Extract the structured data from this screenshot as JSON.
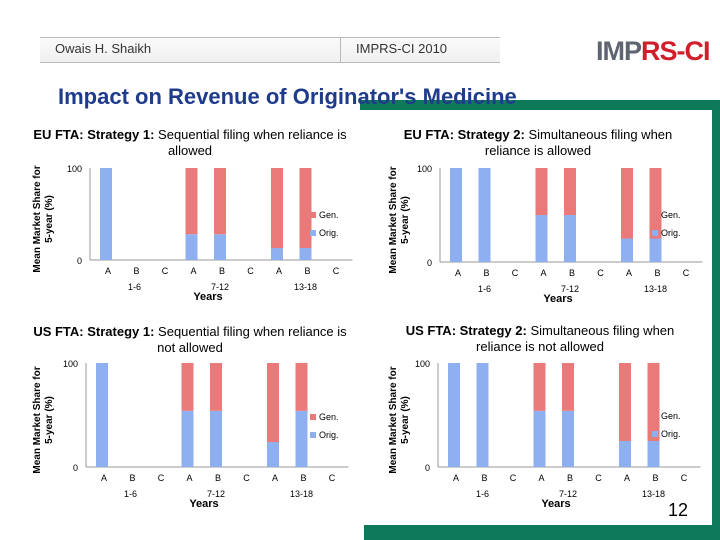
{
  "header": {
    "author": "Owais H. Shaikh",
    "conference": "IMPRS-CI 2010",
    "logo_left": "IMP",
    "logo_right": "RS-CI"
  },
  "slide": {
    "title": "Impact on Revenue of Originator's Medicine",
    "page_number": "12"
  },
  "colors": {
    "orig": "#8fb0f0",
    "gen": "#ea7a7a",
    "accent_green": "#0f7a5a",
    "title_blue": "#1f3b8c"
  },
  "chart_data": [
    {
      "type": "bar",
      "stacked": true,
      "title_bold": "EU FTA: Strategy 1:",
      "title_rest": "Sequential filing when reliance is allowed",
      "ylabel": "Mean Market Share for 5-year (%)",
      "xlabel": "Years",
      "ylim": [
        0,
        100
      ],
      "yticks": [
        0,
        100
      ],
      "categories": [
        "A",
        "B",
        "C",
        "A",
        "B",
        "C",
        "A",
        "B",
        "C"
      ],
      "groups": [
        "1-6",
        "7-12",
        "13-18"
      ],
      "series": [
        {
          "name": "Orig.",
          "values": [
            100,
            0,
            0,
            28,
            28,
            0,
            13,
            13,
            0
          ]
        },
        {
          "name": "Gen.",
          "values": [
            0,
            0,
            0,
            72,
            72,
            0,
            87,
            87,
            0
          ]
        }
      ],
      "legend": [
        "Gen.",
        "Orig."
      ]
    },
    {
      "type": "bar",
      "stacked": true,
      "title_bold": "EU FTA: Strategy 2:",
      "title_rest": "Simultaneous filing when reliance is allowed",
      "ylabel": "Mean Market Share for 5-year (%)",
      "xlabel": "Years",
      "ylim": [
        0,
        100
      ],
      "yticks": [
        0,
        100
      ],
      "categories": [
        "A",
        "B",
        "C",
        "A",
        "B",
        "C",
        "A",
        "B",
        "C"
      ],
      "groups": [
        "1-6",
        "7-12",
        "13-18"
      ],
      "series": [
        {
          "name": "Orig.",
          "values": [
            100,
            100,
            0,
            50,
            50,
            0,
            25,
            25,
            0
          ]
        },
        {
          "name": "Gen.",
          "values": [
            0,
            0,
            0,
            50,
            50,
            0,
            75,
            75,
            0
          ]
        }
      ],
      "legend": [
        "Gen.",
        "Orig."
      ]
    },
    {
      "type": "bar",
      "stacked": true,
      "title_bold": "US FTA: Strategy 1:",
      "title_rest": "Sequential filing when reliance is not allowed",
      "ylabel": "Mean Market Share for 5-year (%)",
      "xlabel": "Years",
      "ylim": [
        0,
        100
      ],
      "yticks": [
        0,
        100
      ],
      "categories": [
        "A",
        "B",
        "C",
        "A",
        "B",
        "C",
        "A",
        "B",
        "C"
      ],
      "groups": [
        "1-6",
        "7-12",
        "13-18"
      ],
      "series": [
        {
          "name": "Orig.",
          "values": [
            100,
            0,
            0,
            54,
            54,
            0,
            24,
            54,
            0
          ]
        },
        {
          "name": "Gen.",
          "values": [
            0,
            0,
            0,
            46,
            46,
            0,
            76,
            46,
            0
          ]
        }
      ],
      "legend": [
        "Gen.",
        "Orig."
      ]
    },
    {
      "type": "bar",
      "stacked": true,
      "title_bold": "US FTA: Strategy 2:",
      "title_rest": "Simultaneous filing when reliance is not allowed",
      "ylabel": "Mean Market Share for 5-year (%)",
      "xlabel": "Years",
      "ylim": [
        0,
        100
      ],
      "yticks": [
        0,
        100
      ],
      "categories": [
        "A",
        "B",
        "C",
        "A",
        "B",
        "C",
        "A",
        "B",
        "C"
      ],
      "groups": [
        "1-6",
        "7-12",
        "13-18"
      ],
      "series": [
        {
          "name": "Orig.",
          "values": [
            100,
            100,
            0,
            54,
            54,
            0,
            25,
            25,
            0
          ]
        },
        {
          "name": "Gen.",
          "values": [
            0,
            0,
            0,
            46,
            46,
            0,
            75,
            75,
            0
          ]
        }
      ],
      "legend": [
        "Gen.",
        "Orig."
      ]
    }
  ]
}
